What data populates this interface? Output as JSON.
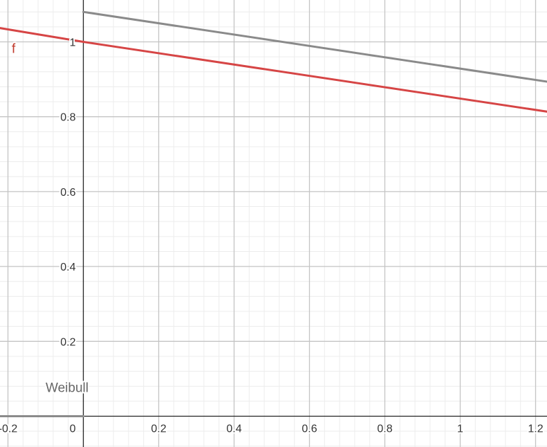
{
  "chart_data": {
    "type": "line",
    "title": "",
    "xlabel": "",
    "ylabel": "",
    "xlim": [
      -0.222,
      1.235
    ],
    "ylim": [
      -0.08,
      1.11
    ],
    "grid": true,
    "x_ticks": [
      {
        "value": -0.2,
        "label": "-0.2"
      },
      {
        "value": 0,
        "label": "0"
      },
      {
        "value": 0.2,
        "label": "0.2"
      },
      {
        "value": 0.4,
        "label": "0.4"
      },
      {
        "value": 0.6,
        "label": "0.6"
      },
      {
        "value": 0.8,
        "label": "0.8"
      },
      {
        "value": 1,
        "label": "1"
      },
      {
        "value": 1.2,
        "label": "1.2"
      }
    ],
    "y_ticks": [
      {
        "value": 0.2,
        "label": "0.2"
      },
      {
        "value": 0.4,
        "label": "0.4"
      },
      {
        "value": 0.6,
        "label": "0.6"
      },
      {
        "value": 0.8,
        "label": "0.8"
      },
      {
        "value": 1,
        "label": "1"
      }
    ],
    "series": [
      {
        "name": "f",
        "color": "#d64545",
        "points": [
          [
            -0.222,
            1.037
          ],
          [
            0,
            1.0
          ],
          [
            1.235,
            0.813
          ]
        ]
      },
      {
        "name": "Weibull",
        "color": "#8a8a8a",
        "points": [
          [
            0,
            1.08
          ],
          [
            1.235,
            0.893
          ]
        ]
      },
      {
        "name": "",
        "color": "#8a8a8a",
        "points": [
          [
            -0.222,
            0.0
          ],
          [
            0,
            0.0
          ]
        ]
      }
    ],
    "annotations": [
      {
        "text": "f",
        "color": "#c0392b",
        "x": -0.19,
        "y": 0.97
      },
      {
        "text": "Weibull",
        "color": "#666666",
        "x": -0.1,
        "y": 0.065
      }
    ]
  }
}
